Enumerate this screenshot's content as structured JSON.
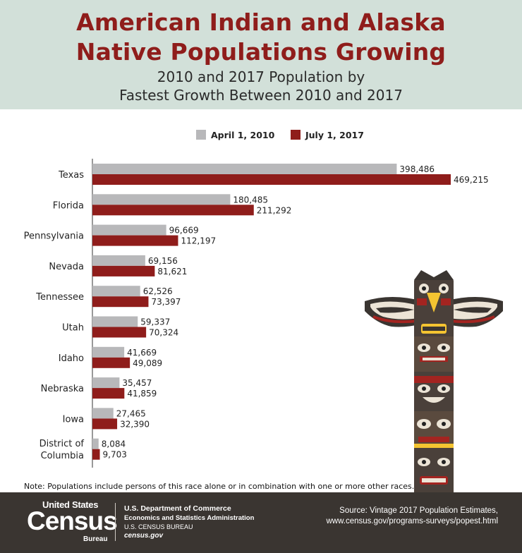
{
  "header": {
    "title_line1": "American Indian and Alaska",
    "title_line2": "Native Populations Growing",
    "subtitle_line1": "2010 and 2017 Population by",
    "subtitle_line2": "Fastest Growth Between 2010 and 2017"
  },
  "colors": {
    "header_bg": "#d2e0d9",
    "title": "#8f1d1b",
    "series_2010": "#b8b8ba",
    "series_2017": "#8f1d1b",
    "footer_bg": "#3a3531"
  },
  "chart_data": {
    "type": "bar",
    "orientation": "horizontal",
    "categories": [
      "Texas",
      "Florida",
      "Pennsylvania",
      "Nevada",
      "Tennessee",
      "Utah",
      "Idaho",
      "Nebraska",
      "Iowa",
      "District of Columbia"
    ],
    "category_lines": [
      [
        "Texas"
      ],
      [
        "Florida"
      ],
      [
        "Pennsylvania"
      ],
      [
        "Nevada"
      ],
      [
        "Tennessee"
      ],
      [
        "Utah"
      ],
      [
        "Idaho"
      ],
      [
        "Nebraska"
      ],
      [
        "Iowa"
      ],
      [
        "District of",
        "Columbia"
      ]
    ],
    "series": [
      {
        "name": "April 1, 2010",
        "values": [
          398486,
          180485,
          96669,
          69156,
          62526,
          59337,
          41669,
          35457,
          27465,
          8084
        ],
        "labels": [
          "398,486",
          "180,485",
          "96,669",
          "69,156",
          "62,526",
          "59,337",
          "41,669",
          "35,457",
          "27,465",
          "8,084"
        ]
      },
      {
        "name": "July 1, 2017",
        "values": [
          469215,
          211292,
          112197,
          81621,
          73397,
          70324,
          49089,
          41859,
          32390,
          9703
        ],
        "labels": [
          "469,215",
          "211,292",
          "112,197",
          "81,621",
          "73,397",
          "70,324",
          "49,089",
          "41,859",
          "32,390",
          "9,703"
        ]
      }
    ],
    "xlim": [
      0,
      469215
    ],
    "legend": "top"
  },
  "note": "Note: Populations include persons of this race alone or in combination with one or more other races.",
  "footer": {
    "logo_line1": "United States",
    "logo_line2": "Census",
    "logo_line3": "Bureau",
    "dept_line1": "U.S. Department of Commerce",
    "dept_line2": "Economics and Statistics Administration",
    "dept_line3": "U.S. CENSUS BUREAU",
    "dept_line4": "census.gov",
    "source_line1": "Source: Vintage 2017 Population Estimates,",
    "source_line2": "www.census.gov/programs-surveys/popest.html"
  },
  "illustration": {
    "icon": "totem-pole-icon"
  }
}
